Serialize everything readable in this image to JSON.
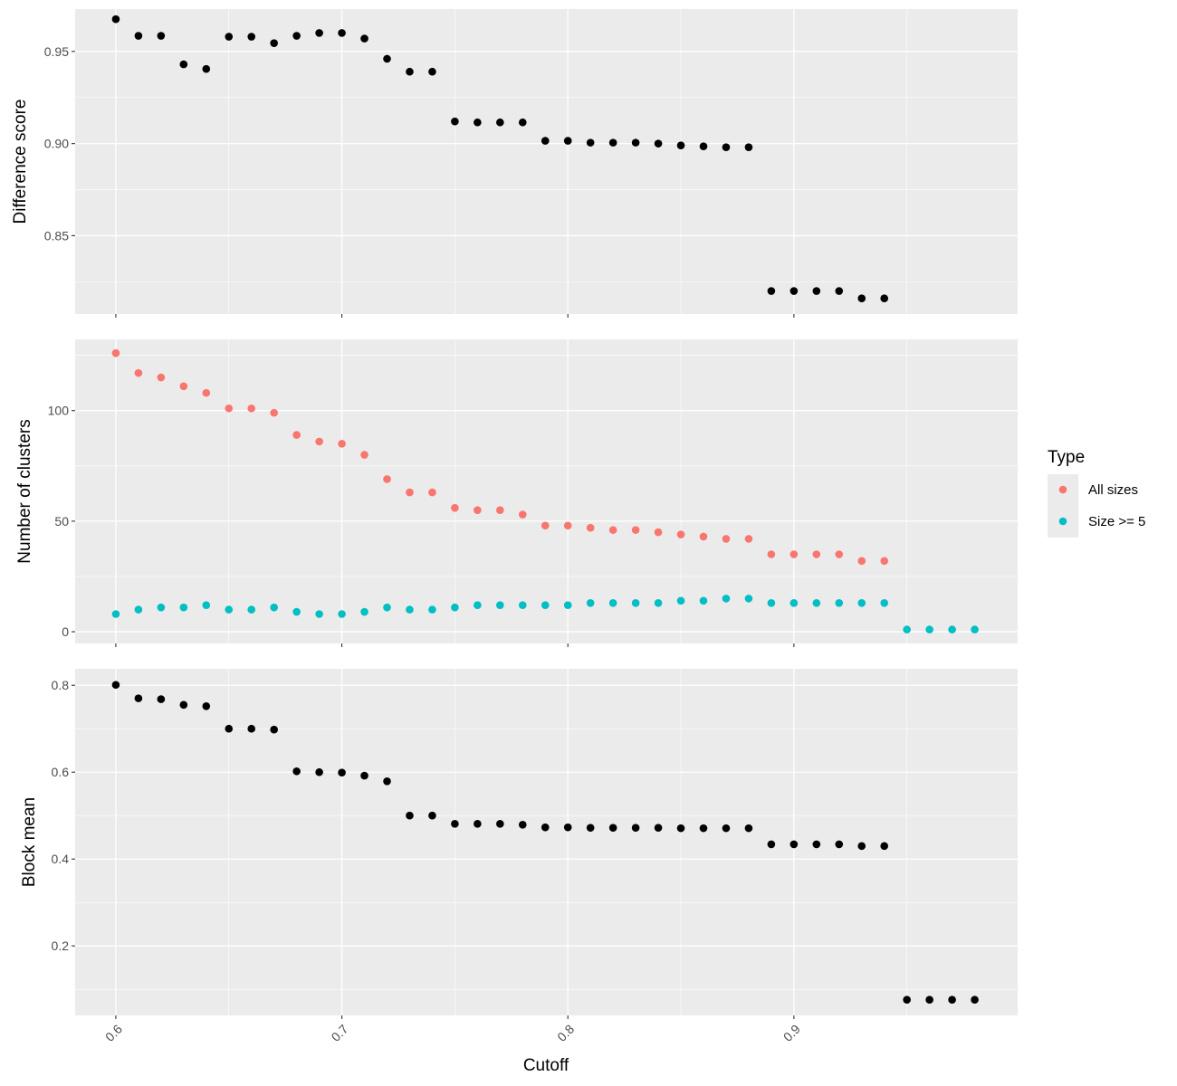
{
  "chart_data": {
    "type": "scatter",
    "x_label": "Cutoff",
    "x_ticks": [
      0.6,
      0.7,
      0.8,
      0.9
    ],
    "x_range": [
      0.582,
      0.999
    ],
    "grid": true,
    "legend": {
      "title": "Type",
      "position": "right",
      "entries": [
        {
          "label": "All sizes",
          "color": "#F8766D"
        },
        {
          "label": "Size >= 5",
          "color": "#00BFC4"
        }
      ]
    },
    "panels": [
      {
        "y_label": "Difference score",
        "y_ticks": [
          0.85,
          0.9,
          0.95
        ],
        "y_tick_labels": [
          "0.85",
          "0.90",
          "0.95"
        ],
        "y_range": [
          0.8075,
          0.973
        ],
        "series": [
          {
            "color": "#000000",
            "x": [
              0.6,
              0.61,
              0.62,
              0.63,
              0.64,
              0.65,
              0.66,
              0.67,
              0.68,
              0.69,
              0.7,
              0.71,
              0.72,
              0.73,
              0.74,
              0.75,
              0.76,
              0.77,
              0.78,
              0.79,
              0.8,
              0.81,
              0.82,
              0.83,
              0.84,
              0.85,
              0.86,
              0.87,
              0.88,
              0.89,
              0.9,
              0.91,
              0.92,
              0.93,
              0.94
            ],
            "y": [
              0.9675,
              0.9585,
              0.9585,
              0.943,
              0.9405,
              0.958,
              0.958,
              0.9545,
              0.9585,
              0.96,
              0.96,
              0.957,
              0.946,
              0.939,
              0.939,
              0.912,
              0.9115,
              0.9115,
              0.9115,
              0.9015,
              0.9015,
              0.9005,
              0.9005,
              0.9005,
              0.9,
              0.899,
              0.8985,
              0.898,
              0.898,
              0.82,
              0.82,
              0.82,
              0.82,
              0.816,
              0.816
            ]
          }
        ]
      },
      {
        "y_label": "Number of clusters",
        "y_ticks": [
          0,
          50,
          100
        ],
        "y_tick_labels": [
          "0",
          "50",
          "100"
        ],
        "y_range": [
          -5.3,
          132.2
        ],
        "series": [
          {
            "name": "All sizes",
            "color": "#F8766D",
            "x": [
              0.6,
              0.61,
              0.62,
              0.63,
              0.64,
              0.65,
              0.66,
              0.67,
              0.68,
              0.69,
              0.7,
              0.71,
              0.72,
              0.73,
              0.74,
              0.75,
              0.76,
              0.77,
              0.78,
              0.79,
              0.8,
              0.81,
              0.82,
              0.83,
              0.84,
              0.85,
              0.86,
              0.87,
              0.88,
              0.89,
              0.9,
              0.91,
              0.92,
              0.93,
              0.94
            ],
            "y": [
              126,
              117,
              115,
              111,
              108,
              101,
              101,
              99,
              89,
              86,
              85,
              80,
              69,
              63,
              63,
              56,
              55,
              55,
              53,
              48,
              48,
              47,
              46,
              46,
              45,
              44,
              43,
              42,
              42,
              35,
              35,
              35,
              35,
              32,
              32
            ]
          },
          {
            "name": "Size >= 5",
            "color": "#00BFC4",
            "x": [
              0.6,
              0.61,
              0.62,
              0.63,
              0.64,
              0.65,
              0.66,
              0.67,
              0.68,
              0.69,
              0.7,
              0.71,
              0.72,
              0.73,
              0.74,
              0.75,
              0.76,
              0.77,
              0.78,
              0.79,
              0.8,
              0.81,
              0.82,
              0.83,
              0.84,
              0.85,
              0.86,
              0.87,
              0.88,
              0.89,
              0.9,
              0.91,
              0.92,
              0.93,
              0.94,
              0.95,
              0.96,
              0.97,
              0.98
            ],
            "y": [
              8,
              10,
              11,
              11,
              12,
              10,
              10,
              11,
              9,
              8,
              8,
              9,
              11,
              10,
              10,
              11,
              12,
              12,
              12,
              12,
              12,
              13,
              13,
              13,
              13,
              14,
              14,
              15,
              15,
              13,
              13,
              13,
              13,
              13,
              13,
              1,
              1,
              1,
              1
            ]
          }
        ]
      },
      {
        "y_label": "Block mean",
        "y_ticks": [
          0.2,
          0.4,
          0.6,
          0.8
        ],
        "y_tick_labels": [
          "0.2",
          "0.4",
          "0.6",
          "0.8"
        ],
        "y_range": [
          0.04,
          0.838
        ],
        "series": [
          {
            "color": "#000000",
            "x": [
              0.6,
              0.61,
              0.62,
              0.63,
              0.64,
              0.65,
              0.66,
              0.67,
              0.68,
              0.69,
              0.7,
              0.71,
              0.72,
              0.73,
              0.74,
              0.75,
              0.76,
              0.77,
              0.78,
              0.79,
              0.8,
              0.81,
              0.82,
              0.83,
              0.84,
              0.85,
              0.86,
              0.87,
              0.88,
              0.89,
              0.9,
              0.91,
              0.92,
              0.93,
              0.94,
              0.95,
              0.96,
              0.97,
              0.98
            ],
            "y": [
              0.801,
              0.77,
              0.768,
              0.755,
              0.752,
              0.7,
              0.7,
              0.698,
              0.602,
              0.6,
              0.599,
              0.592,
              0.579,
              0.5,
              0.5,
              0.481,
              0.481,
              0.481,
              0.479,
              0.473,
              0.473,
              0.472,
              0.472,
              0.472,
              0.472,
              0.471,
              0.471,
              0.471,
              0.471,
              0.434,
              0.434,
              0.434,
              0.434,
              0.43,
              0.43,
              0.076,
              0.076,
              0.076,
              0.076
            ]
          }
        ]
      }
    ]
  }
}
